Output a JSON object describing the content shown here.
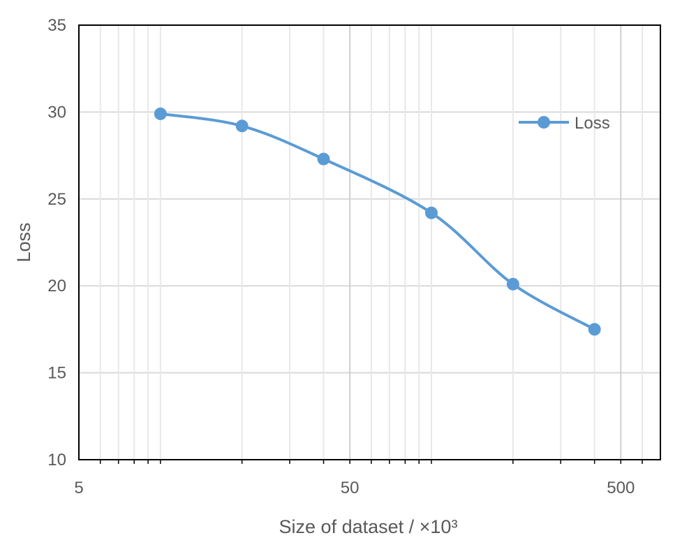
{
  "chart_data": {
    "type": "line",
    "xlabel": "Size of dataset / ×10³",
    "ylabel": "Loss",
    "x_scale": "log",
    "xlim": [
      5,
      700
    ],
    "ylim": [
      10,
      35
    ],
    "x_ticks": [
      5,
      50,
      500
    ],
    "x_tick_labels": [
      "5",
      "50",
      "500"
    ],
    "y_ticks": [
      10,
      15,
      20,
      25,
      30,
      35
    ],
    "y_tick_labels": [
      "10",
      "15",
      "20",
      "25",
      "30",
      "35"
    ],
    "grid": true,
    "legend_position": "top-right",
    "series": [
      {
        "name": "Loss",
        "color": "#5b9bd5",
        "marker": "circle",
        "smooth": true,
        "x": [
          10,
          20,
          40,
          100,
          200,
          400
        ],
        "y": [
          29.9,
          29.2,
          27.3,
          24.2,
          20.1,
          17.5
        ]
      }
    ]
  }
}
